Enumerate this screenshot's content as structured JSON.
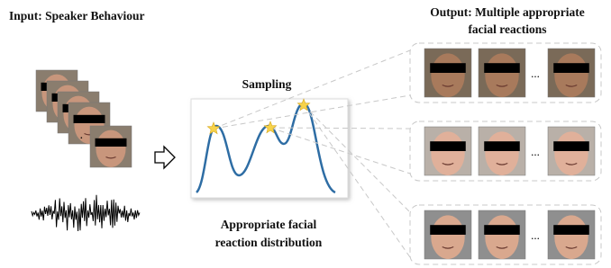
{
  "input": {
    "title": "Input: Speaker Behaviour"
  },
  "sampling": {
    "title": "Sampling",
    "caption": [
      "Appropriate facial",
      "reaction distribution"
    ]
  },
  "output": {
    "title": [
      "Output: Multiple appropriate",
      "facial reactions"
    ],
    "ellipsis": [
      "...",
      "...",
      "..."
    ]
  }
}
